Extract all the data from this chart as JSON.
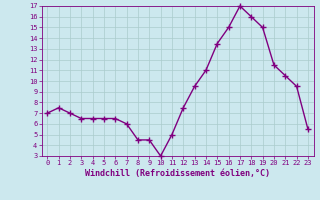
{
  "x": [
    0,
    1,
    2,
    3,
    4,
    5,
    6,
    7,
    8,
    9,
    10,
    11,
    12,
    13,
    14,
    15,
    16,
    17,
    18,
    19,
    20,
    21,
    22,
    23
  ],
  "y": [
    7.0,
    7.5,
    7.0,
    6.5,
    6.5,
    6.5,
    6.5,
    6.0,
    4.5,
    4.5,
    3.0,
    5.0,
    7.5,
    9.5,
    11.0,
    13.5,
    15.0,
    17.0,
    16.0,
    15.0,
    11.5,
    10.5,
    9.5,
    5.5
  ],
  "ylim": [
    3,
    17
  ],
  "xlim": [
    -0.5,
    23.5
  ],
  "yticks": [
    3,
    4,
    5,
    6,
    7,
    8,
    9,
    10,
    11,
    12,
    13,
    14,
    15,
    16,
    17
  ],
  "xticks": [
    0,
    1,
    2,
    3,
    4,
    5,
    6,
    7,
    8,
    9,
    10,
    11,
    12,
    13,
    14,
    15,
    16,
    17,
    18,
    19,
    20,
    21,
    22,
    23
  ],
  "xlabel": "Windchill (Refroidissement éolien,°C)",
  "line_color": "#800080",
  "marker": "+",
  "bg_color": "#cce8ee",
  "grid_color": "#aacccc",
  "axis_color": "#800080",
  "tick_label_color": "#800080",
  "xlabel_color": "#800080",
  "marker_size": 4,
  "line_width": 1.0
}
